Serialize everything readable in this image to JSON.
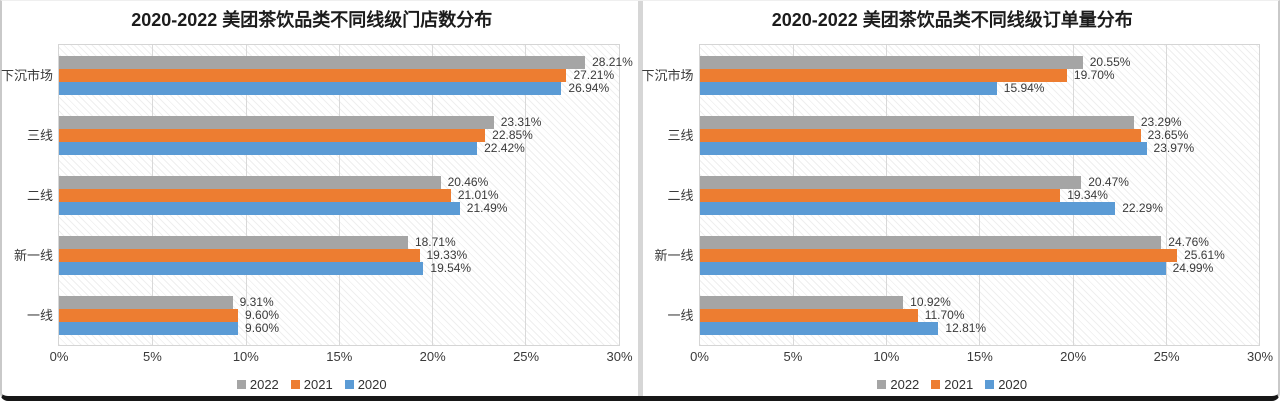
{
  "theme": {
    "series_gray": "#a5a5a5",
    "series_orange": "#ed7d31",
    "series_blue": "#5b9bd5"
  },
  "chart_data": [
    {
      "type": "bar",
      "orientation": "horizontal",
      "title": "2020-2022 美团茶饮品类不同线级门店数分布",
      "categories": [
        "下沉市场",
        "三线",
        "二线",
        "新一线",
        "一线"
      ],
      "series": [
        {
          "name": "2022",
          "color": "#a5a5a5",
          "values": [
            28.21,
            23.31,
            20.46,
            18.71,
            9.31
          ]
        },
        {
          "name": "2021",
          "color": "#ed7d31",
          "values": [
            27.21,
            22.85,
            21.01,
            19.33,
            9.6
          ]
        },
        {
          "name": "2020",
          "color": "#5b9bd5",
          "values": [
            26.94,
            22.42,
            21.49,
            19.54,
            9.6
          ]
        }
      ],
      "x_ticks": [
        "0%",
        "5%",
        "10%",
        "15%",
        "20%",
        "25%",
        "30%"
      ],
      "xlim": [
        0,
        30
      ],
      "value_label_suffix": "%",
      "grid": true,
      "legend_position": "bottom",
      "legend": [
        "2022",
        "2021",
        "2020"
      ]
    },
    {
      "type": "bar",
      "orientation": "horizontal",
      "title": "2020-2022 美团茶饮品类不同线级订单量分布",
      "categories": [
        "下沉市场",
        "三线",
        "二线",
        "新一线",
        "一线"
      ],
      "series": [
        {
          "name": "2022",
          "color": "#a5a5a5",
          "values": [
            20.55,
            23.29,
            20.47,
            24.76,
            10.92
          ]
        },
        {
          "name": "2021",
          "color": "#ed7d31",
          "values": [
            19.7,
            23.65,
            19.34,
            25.61,
            11.7
          ]
        },
        {
          "name": "2020",
          "color": "#5b9bd5",
          "values": [
            15.94,
            23.97,
            22.29,
            24.99,
            12.81
          ]
        }
      ],
      "x_ticks": [
        "0%",
        "5%",
        "10%",
        "15%",
        "20%",
        "25%",
        "30%"
      ],
      "xlim": [
        0,
        30
      ],
      "value_label_suffix": "%",
      "grid": true,
      "legend_position": "bottom",
      "legend": [
        "2022",
        "2021",
        "2020"
      ]
    }
  ]
}
